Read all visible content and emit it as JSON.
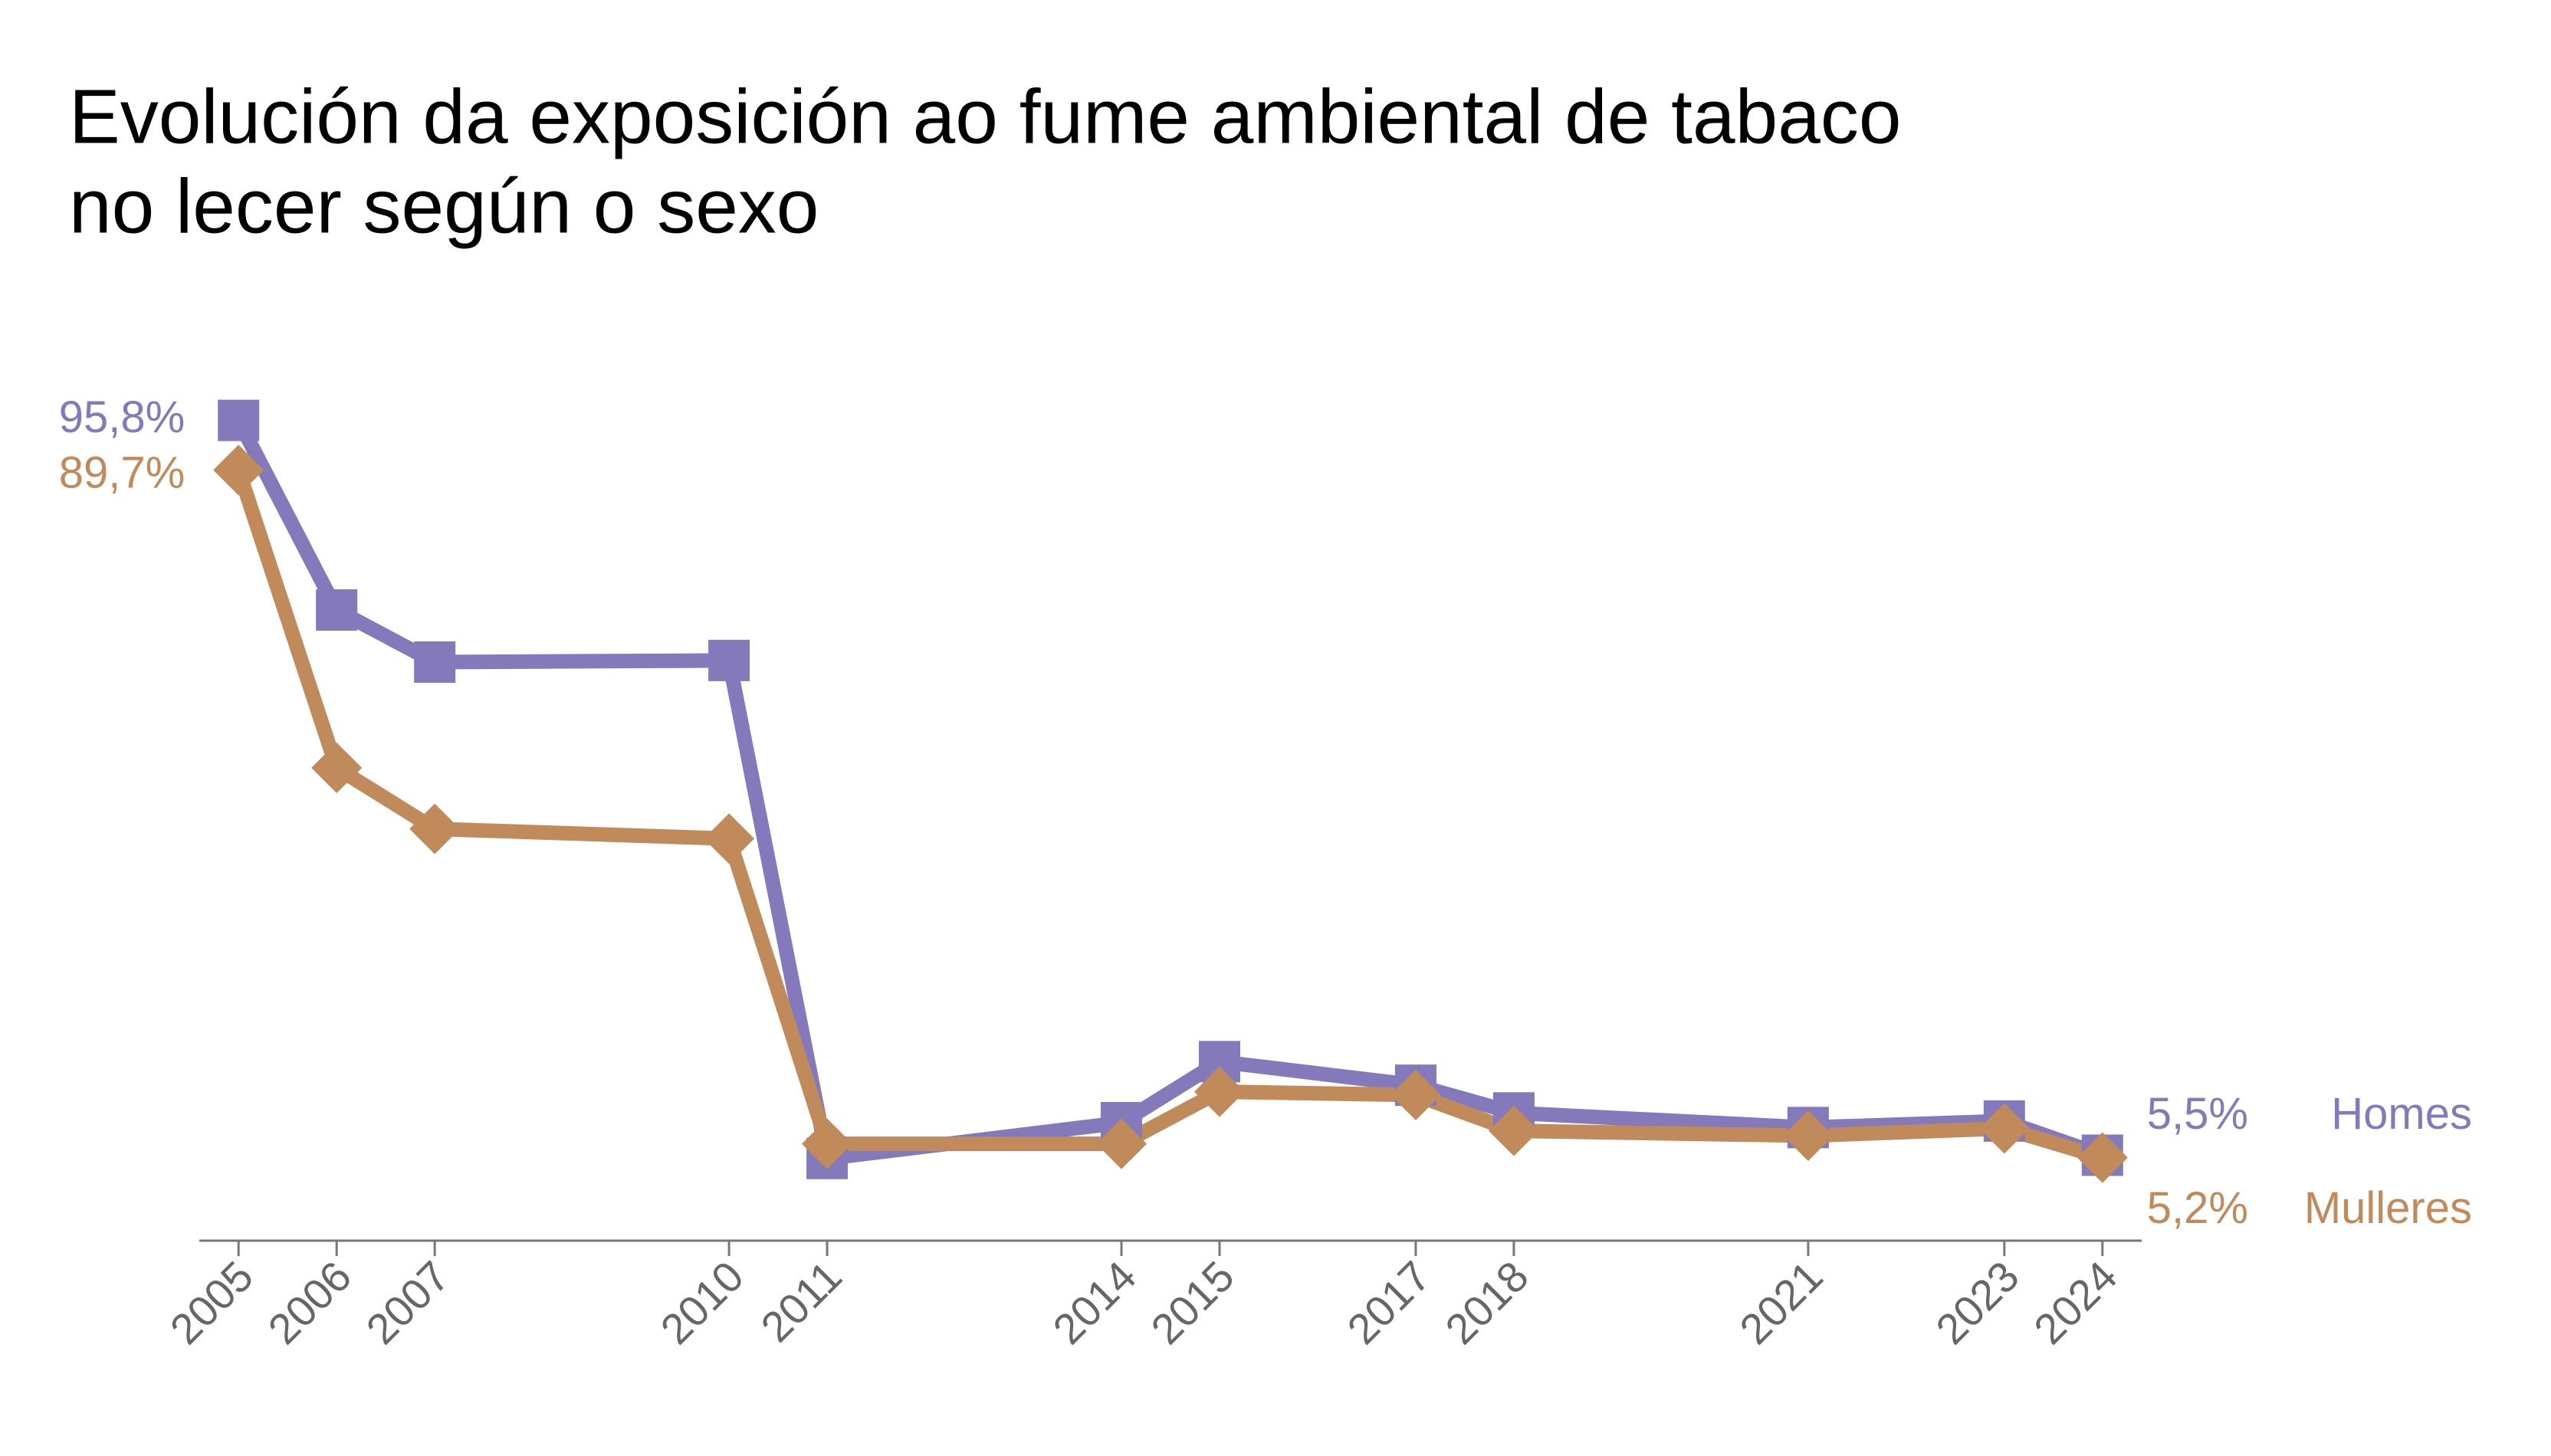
{
  "chart_data": {
    "type": "line",
    "title": "Evolución da exposición ao fume ambiental de tabaco",
    "subtitle": "no lecer según o sexo",
    "x": [
      2005,
      2006,
      2007,
      2010,
      2011,
      2014,
      2015,
      2017,
      2018,
      2021,
      2023,
      2024
    ],
    "series": [
      {
        "name": "Homes",
        "color": "#8479bb",
        "marker": "square",
        "values": [
          95.8,
          72.5,
          66.1,
          66.3,
          5.1,
          9.5,
          17.0,
          14.1,
          10.7,
          8.9,
          9.7,
          5.5
        ],
        "value_labels": [
          "95,8%",
          null,
          null,
          null,
          null,
          null,
          null,
          null,
          null,
          null,
          null,
          "5,5%"
        ]
      },
      {
        "name": "Mulleres",
        "color": "#c08a5a",
        "marker": "diamond",
        "values": [
          89.7,
          53.1,
          45.6,
          44.4,
          6.9,
          6.9,
          13.3,
          12.9,
          8.5,
          7.9,
          8.8,
          5.2
        ],
        "value_labels": [
          "89,7%",
          null,
          null,
          null,
          null,
          null,
          null,
          null,
          null,
          null,
          null,
          "5,2%"
        ]
      }
    ],
    "xlim": [
      2004.6,
      2024.4
    ],
    "xticks": [
      2005,
      2006,
      2007,
      2010,
      2011,
      2014,
      2015,
      2017,
      2018,
      2021,
      2023,
      2024
    ],
    "ylim": [
      -5,
      100
    ],
    "grid": false
  }
}
